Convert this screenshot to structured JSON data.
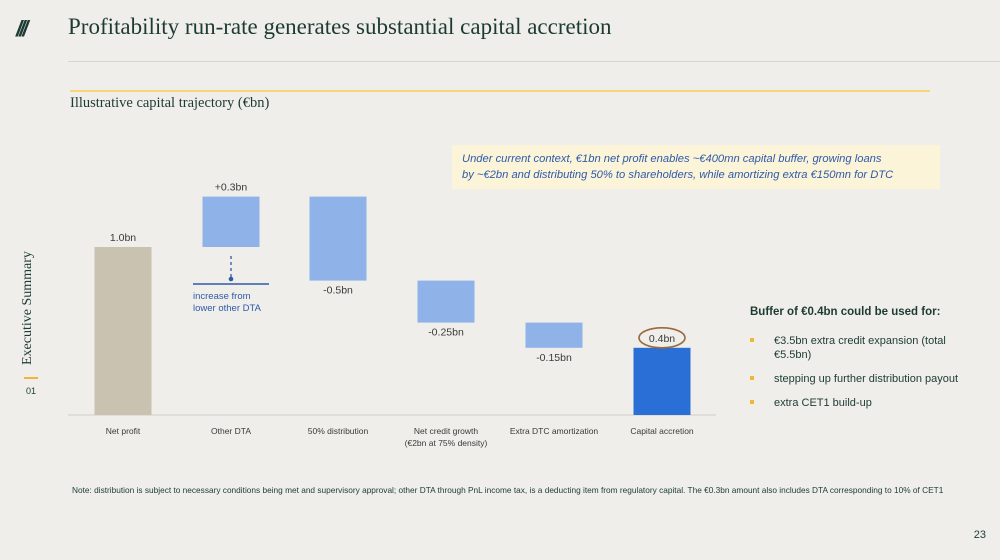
{
  "header": {
    "logo": "///",
    "title": "Profitability run-rate generates substantial capital accretion"
  },
  "subtitle": "Illustrative capital trajectory (€bn)",
  "callout": {
    "line1": "Under current context, €1bn net profit enables ~€400mn capital buffer, growing loans",
    "line2": "by ~€2bn and distributing 50% to shareholders, while amortizing extra €150mn for DTC"
  },
  "side": {
    "section": "Executive Summary",
    "number": "01"
  },
  "chart_data": {
    "type": "bar",
    "subtype": "waterfall",
    "categories": [
      "Net profit",
      "Other DTA",
      "50% distribution",
      "Net credit growth\n(€2bn at 75% density)",
      "Extra DTC amortization",
      "Capital accretion"
    ],
    "values": [
      1.0,
      0.3,
      -0.5,
      -0.25,
      -0.15,
      0.4
    ],
    "kind": [
      "total",
      "delta",
      "delta",
      "delta",
      "delta",
      "total"
    ],
    "data_labels": [
      "1.0bn",
      "+0.3bn",
      "-0.5bn",
      "-0.25bn",
      "-0.15bn",
      "0.4bn"
    ],
    "annotation": "increase from\nlower other DTA",
    "highlight": "0.4bn",
    "ylim": [
      0,
      1.3
    ],
    "colors": {
      "total": "#c9c2b0",
      "delta": "#8fb3e8",
      "final": "#2a6fd6",
      "highlight_ring": "#9b6a3c",
      "annotation": "#2f5aa8"
    }
  },
  "buffer": {
    "title": "Buffer of €0.4bn could be used for:",
    "items": [
      "€3.5bn extra credit expansion (total €5.5bn)",
      "stepping up further distribution payout",
      "extra CET1 build-up"
    ]
  },
  "note": "Note: distribution is subject to necessary conditions being met and supervisory approval; other DTA through PnL income tax, is a deducting item from regulatory capital. The €0.3bn amount also includes DTA corresponding to 10% of CET1",
  "page_number": "23"
}
